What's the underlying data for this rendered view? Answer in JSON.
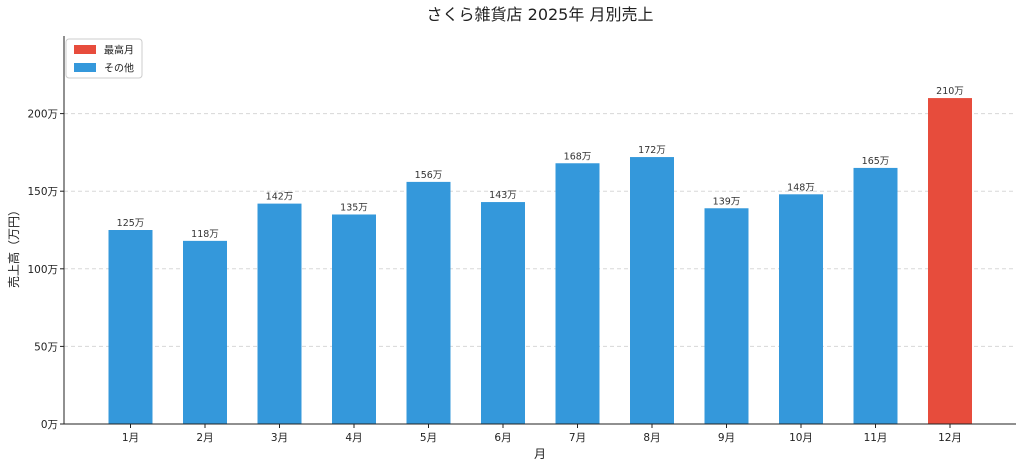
{
  "chart_data": {
    "type": "bar",
    "title": "さくら雑貨店 2025年 月別売上",
    "xlabel": "月",
    "ylabel": "売上高（万円）",
    "categories": [
      "1月",
      "2月",
      "3月",
      "4月",
      "5月",
      "6月",
      "7月",
      "8月",
      "9月",
      "10月",
      "11月",
      "12月"
    ],
    "values": [
      125,
      118,
      142,
      135,
      156,
      143,
      168,
      172,
      139,
      148,
      165,
      210
    ],
    "value_suffix": "万",
    "highlight_index": 11,
    "ylim": [
      0,
      250
    ],
    "yticks": [
      0,
      50,
      100,
      150,
      200
    ],
    "ytick_labels": [
      "0万",
      "50万",
      "100万",
      "150万",
      "200万"
    ],
    "grid": true,
    "legend": {
      "placement": "top-left",
      "entries": [
        {
          "label": "最高月",
          "color": "#e74c3c"
        },
        {
          "label": "その他",
          "color": "#3498db"
        }
      ]
    },
    "colors": {
      "default": "#3498db",
      "highlight": "#e74c3c"
    }
  }
}
